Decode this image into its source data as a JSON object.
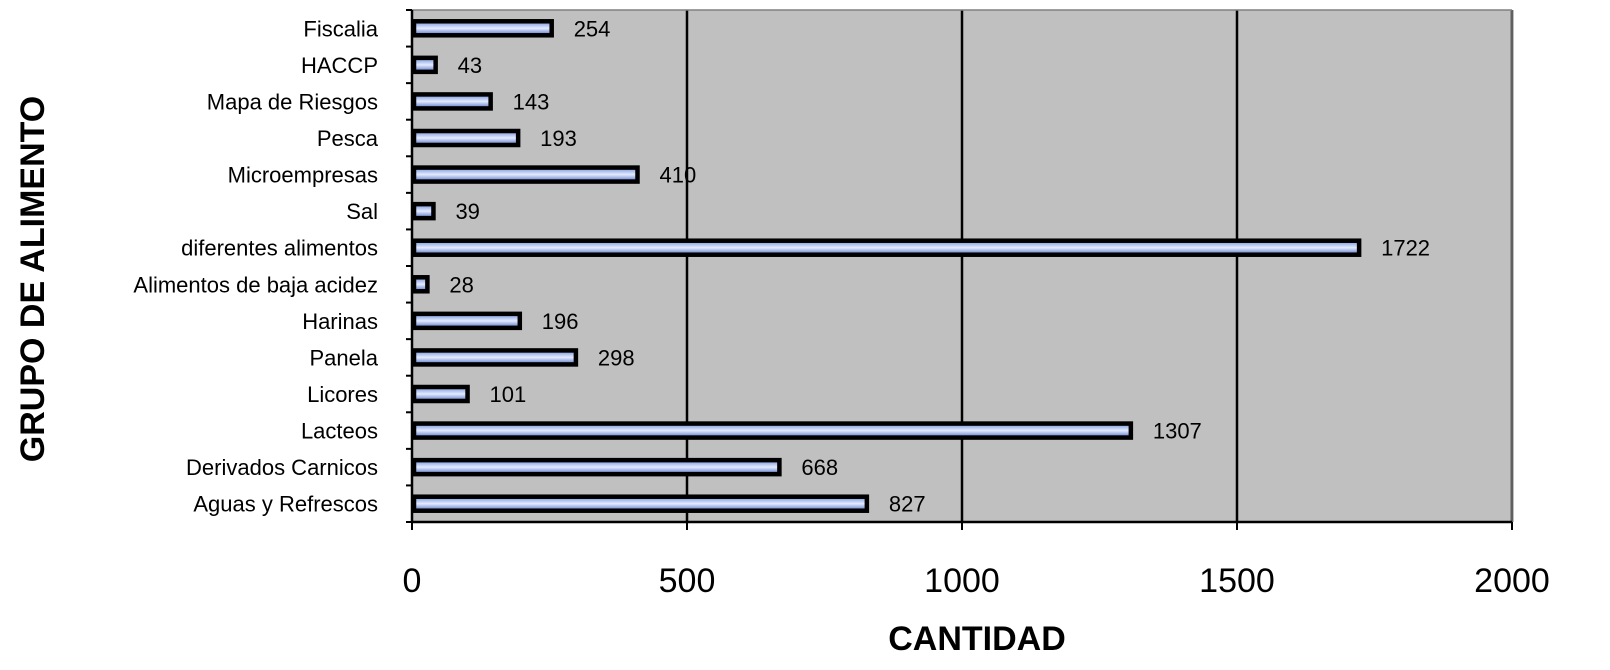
{
  "chart_data": {
    "type": "bar",
    "orientation": "horizontal",
    "categories": [
      "Fiscalia",
      "HACCP",
      "Mapa de Riesgos",
      "Pesca",
      "Microempresas",
      "Sal",
      "diferentes alimentos",
      "Alimentos de baja acidez",
      "Harinas",
      "Panela",
      "Licores",
      "Lacteos",
      "Derivados Carnicos",
      "Aguas y Refrescos"
    ],
    "values": [
      254,
      43,
      143,
      193,
      410,
      39,
      1722,
      28,
      196,
      298,
      101,
      1307,
      668,
      827
    ],
    "xlabel": "CANTIDAD",
    "ylabel": "GRUPO DE ALIMENTO",
    "xlim": [
      0,
      2000
    ],
    "xticks": [
      0,
      500,
      1000,
      1500,
      2000
    ],
    "grid": "vertical",
    "legend": "none",
    "colors": {
      "plot_background": "#c0c0c0",
      "bar_fill_light": "#d6e0ff",
      "bar_fill_dark": "#5577cc",
      "bar_outline": "#000000",
      "gridline": "#000000"
    }
  }
}
